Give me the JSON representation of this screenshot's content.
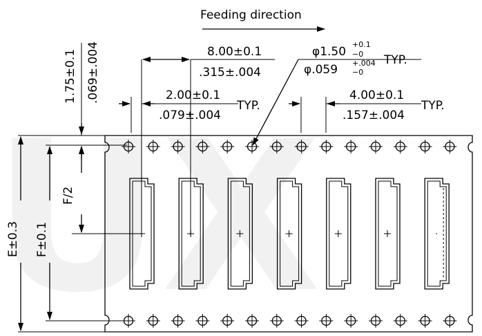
{
  "watermark": "UX",
  "feeding_direction": "Feeding direction",
  "pitch_8": {
    "metric": "8.00±0.1",
    "inch": ".315±.004"
  },
  "hole_dia": {
    "metric_base": "φ1.50",
    "metric_tol_plus": "+0.1",
    "metric_tol_minus": "−0",
    "inch_base": "φ.059",
    "inch_tol_plus": "+.004",
    "inch_tol_minus": "−0",
    "suffix": "TYP."
  },
  "pitch_2": {
    "metric": "2.00±0.1",
    "inch": ".079±.004",
    "suffix": "TYP."
  },
  "pitch_4": {
    "metric": "4.00±0.1",
    "inch": ".157±.004",
    "suffix": "TYP."
  },
  "edge_175": {
    "metric": "1.75±0.1",
    "inch": ".069±.004"
  },
  "f_half": "F/2",
  "f_dim": "F±0.1",
  "e_dim": "E±0.3"
}
